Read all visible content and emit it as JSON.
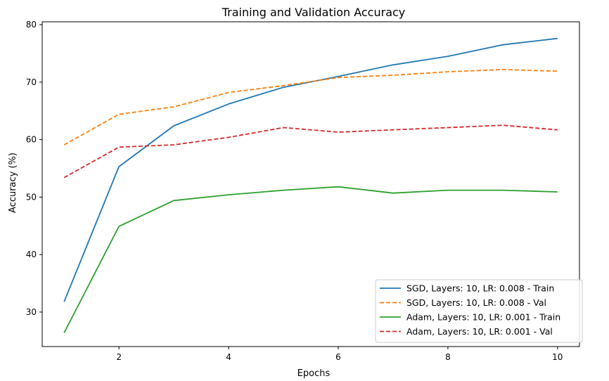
{
  "chart_data": {
    "type": "line",
    "title": "Training and Validation Accuracy",
    "xlabel": "Epochs",
    "ylabel": "Accuracy (%)",
    "xlim": [
      0.6,
      10.4
    ],
    "ylim": [
      24,
      80.5
    ],
    "xticks": [
      2,
      4,
      6,
      8,
      10
    ],
    "yticks": [
      30,
      40,
      50,
      60,
      70,
      80
    ],
    "grid": false,
    "legend_position": "bottom-right",
    "x": [
      1,
      2,
      3,
      4,
      5,
      6,
      7,
      8,
      9,
      10
    ],
    "series": [
      {
        "name": "SGD, Layers: 10, LR: 0.008 - Train",
        "color": "#1f77b4",
        "style": "solid",
        "values": [
          31.8,
          55.3,
          62.4,
          66.2,
          69.1,
          71.0,
          73.0,
          74.5,
          76.5,
          77.6
        ]
      },
      {
        "name": "SGD, Layers: 10, LR: 0.008 - Val",
        "color": "#ff7f0e",
        "style": "dashed",
        "values": [
          59.1,
          64.4,
          65.7,
          68.2,
          69.4,
          70.8,
          71.2,
          71.8,
          72.2,
          71.9
        ]
      },
      {
        "name": "Adam, Layers: 10, LR: 0.001 - Train",
        "color": "#2ca02c",
        "style": "solid",
        "values": [
          26.4,
          44.9,
          49.4,
          50.4,
          51.2,
          51.8,
          50.7,
          51.2,
          51.2,
          50.9
        ]
      },
      {
        "name": "Adam, Layers: 10, LR: 0.001 - Val",
        "color": "#d62728",
        "style": "dashed",
        "values": [
          53.4,
          58.7,
          59.1,
          60.4,
          62.1,
          61.3,
          61.7,
          62.1,
          62.5,
          61.7
        ]
      }
    ]
  }
}
